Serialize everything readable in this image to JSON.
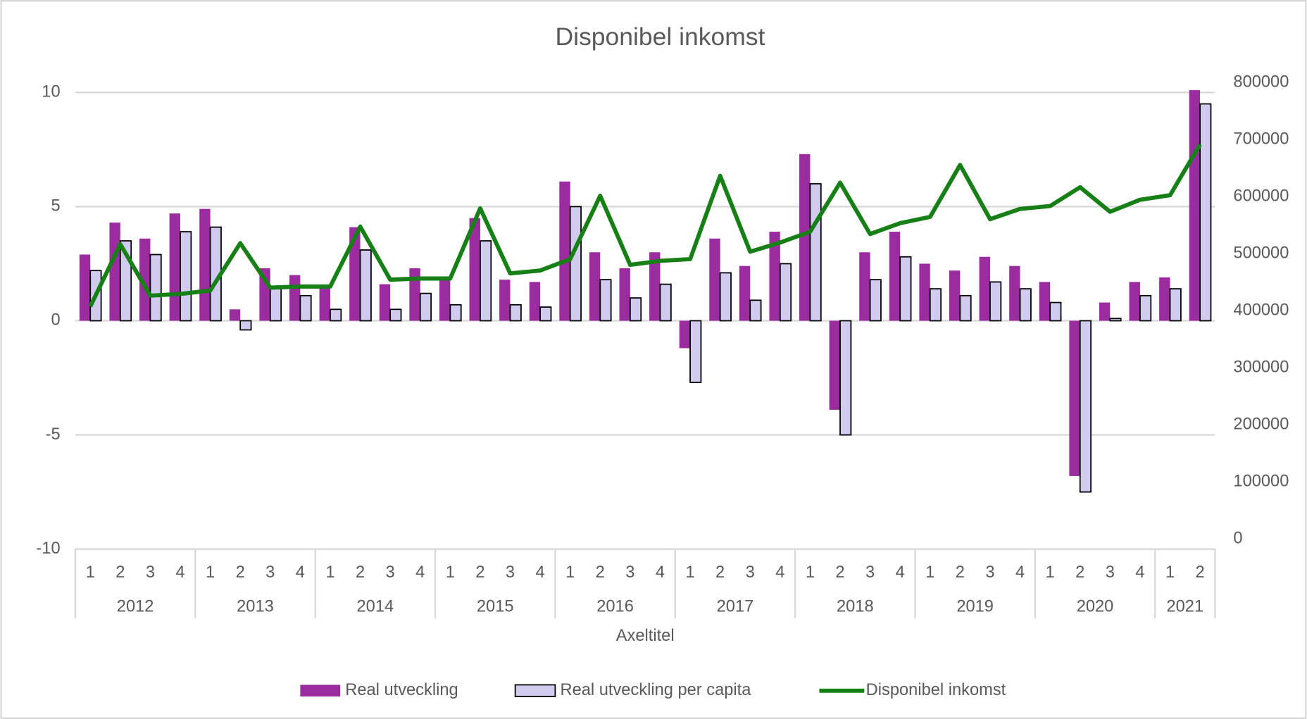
{
  "chart_data": {
    "type": "bar_line",
    "title": "Disponibel inkomst",
    "x_label": "Axeltitel",
    "category_groups": [
      {
        "label": "2012",
        "categories": [
          "1",
          "2",
          "3",
          "4"
        ]
      },
      {
        "label": "2013",
        "categories": [
          "1",
          "2",
          "3",
          "4"
        ]
      },
      {
        "label": "2014",
        "categories": [
          "1",
          "2",
          "3",
          "4"
        ]
      },
      {
        "label": "2015",
        "categories": [
          "1",
          "2",
          "3",
          "4"
        ]
      },
      {
        "label": "2016",
        "categories": [
          "1",
          "2",
          "3",
          "4"
        ]
      },
      {
        "label": "2017",
        "categories": [
          "1",
          "2",
          "3",
          "4"
        ]
      },
      {
        "label": "2018",
        "categories": [
          "1",
          "2",
          "3",
          "4"
        ]
      },
      {
        "label": "2019",
        "categories": [
          "1",
          "2",
          "3",
          "4"
        ]
      },
      {
        "label": "2020",
        "categories": [
          "1",
          "2",
          "3",
          "4"
        ]
      },
      {
        "label": "2021",
        "categories": [
          "1",
          "2"
        ]
      }
    ],
    "ylim": [
      -10,
      10
    ],
    "yticks": [
      -10,
      -5,
      0,
      5,
      10
    ],
    "y2lim": [
      0,
      800000
    ],
    "y2ticks": [
      0,
      100000,
      200000,
      300000,
      400000,
      500000,
      600000,
      700000,
      800000
    ],
    "grid": true,
    "legend": "bottom",
    "series": [
      {
        "name": "Real utveckling",
        "type": "bar",
        "color": "#9b2ca0",
        "values": [
          2.9,
          4.3,
          3.6,
          4.7,
          4.9,
          0.5,
          2.3,
          2.0,
          1.5,
          4.1,
          1.6,
          2.3,
          1.9,
          4.5,
          1.8,
          1.7,
          6.1,
          3.0,
          2.3,
          3.0,
          -1.2,
          3.6,
          2.4,
          3.9,
          7.3,
          -3.9,
          3.0,
          3.9,
          2.5,
          2.2,
          2.8,
          2.4,
          1.7,
          -6.8,
          0.8,
          1.7,
          1.9,
          10.1
        ]
      },
      {
        "name": "Real utveckling per capita",
        "type": "bar",
        "color": "#d2cbf0",
        "edge_color": "#000000",
        "values": [
          2.2,
          3.5,
          2.9,
          3.9,
          4.1,
          -0.4,
          1.4,
          1.1,
          0.5,
          3.1,
          0.5,
          1.2,
          0.7,
          3.5,
          0.7,
          0.6,
          5.0,
          1.8,
          1.0,
          1.6,
          -2.7,
          2.1,
          0.9,
          2.5,
          6.0,
          -5.0,
          1.8,
          2.8,
          1.4,
          1.1,
          1.7,
          1.4,
          0.8,
          -7.5,
          0.1,
          1.1,
          1.4,
          9.5
        ]
      },
      {
        "name": "Disponibel inkomst",
        "type": "line",
        "axis": "y2",
        "color": "#168016",
        "values": [
          425000,
          534000,
          444000,
          447000,
          453000,
          536000,
          458000,
          460000,
          460000,
          565000,
          472000,
          474000,
          474000,
          597000,
          483000,
          488000,
          508000,
          619000,
          498000,
          505000,
          508000,
          654000,
          521000,
          537000,
          556000,
          642000,
          552000,
          571000,
          582000,
          673000,
          578000,
          596000,
          601000,
          634000,
          591000,
          612000,
          620000,
          709000
        ]
      }
    ]
  }
}
